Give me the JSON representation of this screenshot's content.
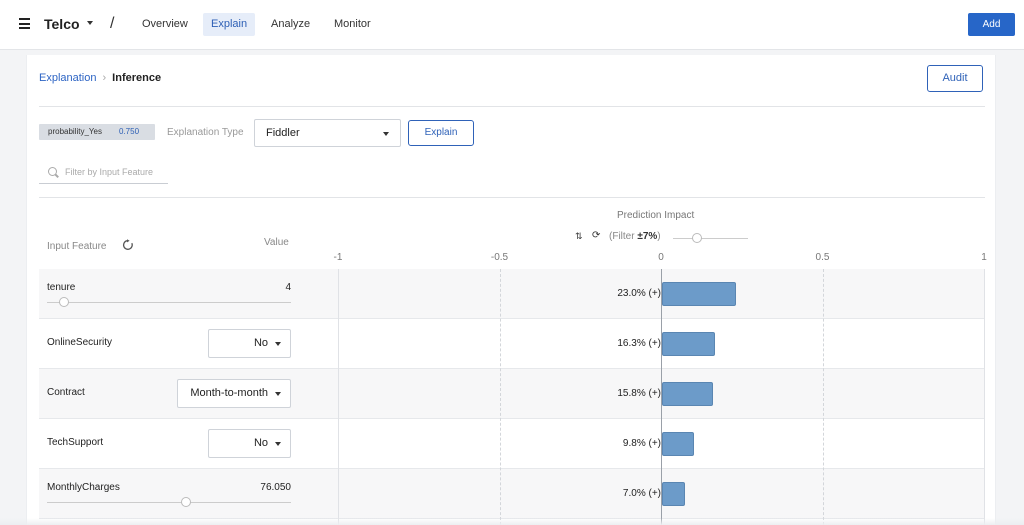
{
  "nav": {
    "brand": "Telco",
    "slash": "/",
    "tabs": [
      {
        "label": "Overview",
        "active": false
      },
      {
        "label": "Explain",
        "active": true
      },
      {
        "label": "Analyze",
        "active": false
      },
      {
        "label": "Monitor",
        "active": false
      }
    ],
    "add_label": "Add"
  },
  "breadcrumb": {
    "parent": "Explanation",
    "separator": "›",
    "current": "Inference"
  },
  "audit_label": "Audit",
  "controls": {
    "prob_key": "probability_Yes",
    "prob_value": "0.750",
    "explanation_type_label": "Explanation Type",
    "explanation_type_value": "Fiddler",
    "explain_label": "Explain",
    "filter_placeholder": "Filter by Input Feature"
  },
  "table": {
    "col_feature": "Input Feature",
    "col_value": "Value",
    "col_impact": "Prediction Impact",
    "filter_prefix": "(Filter ",
    "filter_value": "±7%",
    "filter_suffix": ")",
    "axis_ticks": [
      "-1",
      "-0.5",
      "0",
      "0.5",
      "1"
    ],
    "axis_min": -1,
    "axis_max": 1,
    "rows": [
      {
        "feature": "tenure",
        "control": "slider",
        "value": "4",
        "slider_fraction": 0.07,
        "impact": 0.23,
        "impact_label": "23.0% (+)"
      },
      {
        "feature": "OnlineSecurity",
        "control": "dropdown",
        "value": "No",
        "impact": 0.163,
        "impact_label": "16.3% (+)"
      },
      {
        "feature": "Contract",
        "control": "dropdown",
        "value": "Month-to-month",
        "impact": 0.158,
        "impact_label": "15.8% (+)"
      },
      {
        "feature": "TechSupport",
        "control": "dropdown",
        "value": "No",
        "impact": 0.098,
        "impact_label": "9.8% (+)"
      },
      {
        "feature": "MonthlyCharges",
        "control": "slider",
        "value": "76.050",
        "slider_fraction": 0.57,
        "impact": 0.07,
        "impact_label": "7.0% (+)"
      }
    ]
  },
  "colors": {
    "accent": "#2766c8",
    "bar": "#6c9bc9"
  }
}
